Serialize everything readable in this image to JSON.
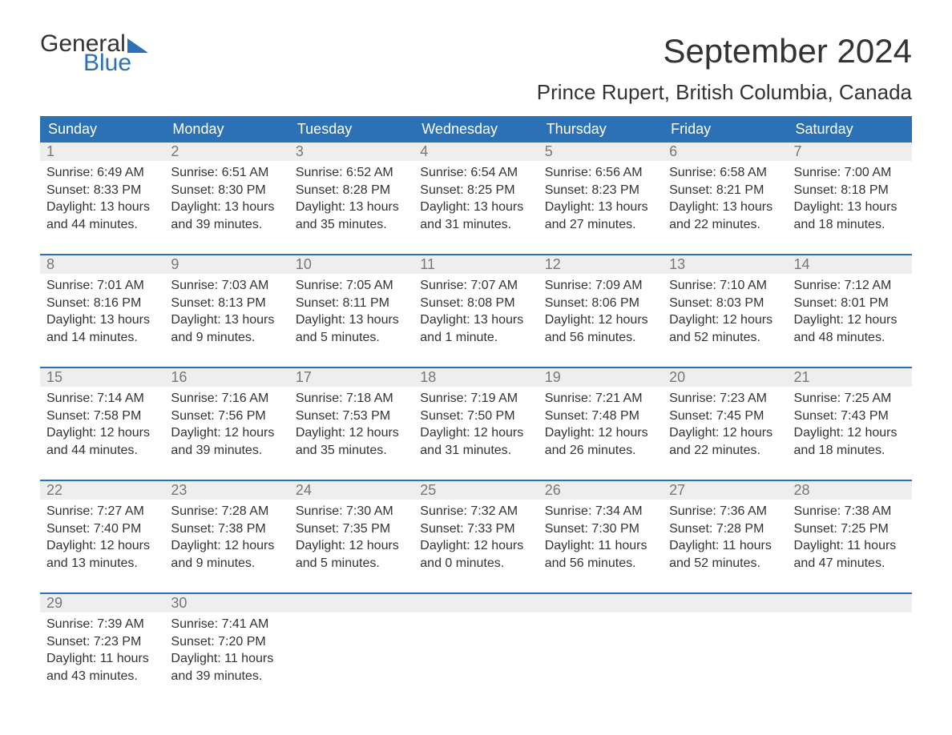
{
  "logo": {
    "line1": "General",
    "line2": "Blue"
  },
  "title": "September 2024",
  "subtitle": "Prince Rupert, British Columbia, Canada",
  "colors": {
    "brand_blue": "#2c71b6",
    "header_text": "#ffffff",
    "daynum_bg": "#eeeeee",
    "daynum_text": "#777777",
    "body_text": "#333333",
    "background": "#ffffff"
  },
  "typography": {
    "title_fontsize": 42,
    "subtitle_fontsize": 26,
    "weekday_fontsize": 18,
    "daynum_fontsize": 18,
    "body_fontsize": 16,
    "logo_fontsize": 30
  },
  "weekdays": [
    "Sunday",
    "Monday",
    "Tuesday",
    "Wednesday",
    "Thursday",
    "Friday",
    "Saturday"
  ],
  "weeks": [
    [
      {
        "num": "1",
        "sunrise": "Sunrise: 6:49 AM",
        "sunset": "Sunset: 8:33 PM",
        "day1": "Daylight: 13 hours",
        "day2": "and 44 minutes."
      },
      {
        "num": "2",
        "sunrise": "Sunrise: 6:51 AM",
        "sunset": "Sunset: 8:30 PM",
        "day1": "Daylight: 13 hours",
        "day2": "and 39 minutes."
      },
      {
        "num": "3",
        "sunrise": "Sunrise: 6:52 AM",
        "sunset": "Sunset: 8:28 PM",
        "day1": "Daylight: 13 hours",
        "day2": "and 35 minutes."
      },
      {
        "num": "4",
        "sunrise": "Sunrise: 6:54 AM",
        "sunset": "Sunset: 8:25 PM",
        "day1": "Daylight: 13 hours",
        "day2": "and 31 minutes."
      },
      {
        "num": "5",
        "sunrise": "Sunrise: 6:56 AM",
        "sunset": "Sunset: 8:23 PM",
        "day1": "Daylight: 13 hours",
        "day2": "and 27 minutes."
      },
      {
        "num": "6",
        "sunrise": "Sunrise: 6:58 AM",
        "sunset": "Sunset: 8:21 PM",
        "day1": "Daylight: 13 hours",
        "day2": "and 22 minutes."
      },
      {
        "num": "7",
        "sunrise": "Sunrise: 7:00 AM",
        "sunset": "Sunset: 8:18 PM",
        "day1": "Daylight: 13 hours",
        "day2": "and 18 minutes."
      }
    ],
    [
      {
        "num": "8",
        "sunrise": "Sunrise: 7:01 AM",
        "sunset": "Sunset: 8:16 PM",
        "day1": "Daylight: 13 hours",
        "day2": "and 14 minutes."
      },
      {
        "num": "9",
        "sunrise": "Sunrise: 7:03 AM",
        "sunset": "Sunset: 8:13 PM",
        "day1": "Daylight: 13 hours",
        "day2": "and 9 minutes."
      },
      {
        "num": "10",
        "sunrise": "Sunrise: 7:05 AM",
        "sunset": "Sunset: 8:11 PM",
        "day1": "Daylight: 13 hours",
        "day2": "and 5 minutes."
      },
      {
        "num": "11",
        "sunrise": "Sunrise: 7:07 AM",
        "sunset": "Sunset: 8:08 PM",
        "day1": "Daylight: 13 hours",
        "day2": "and 1 minute."
      },
      {
        "num": "12",
        "sunrise": "Sunrise: 7:09 AM",
        "sunset": "Sunset: 8:06 PM",
        "day1": "Daylight: 12 hours",
        "day2": "and 56 minutes."
      },
      {
        "num": "13",
        "sunrise": "Sunrise: 7:10 AM",
        "sunset": "Sunset: 8:03 PM",
        "day1": "Daylight: 12 hours",
        "day2": "and 52 minutes."
      },
      {
        "num": "14",
        "sunrise": "Sunrise: 7:12 AM",
        "sunset": "Sunset: 8:01 PM",
        "day1": "Daylight: 12 hours",
        "day2": "and 48 minutes."
      }
    ],
    [
      {
        "num": "15",
        "sunrise": "Sunrise: 7:14 AM",
        "sunset": "Sunset: 7:58 PM",
        "day1": "Daylight: 12 hours",
        "day2": "and 44 minutes."
      },
      {
        "num": "16",
        "sunrise": "Sunrise: 7:16 AM",
        "sunset": "Sunset: 7:56 PM",
        "day1": "Daylight: 12 hours",
        "day2": "and 39 minutes."
      },
      {
        "num": "17",
        "sunrise": "Sunrise: 7:18 AM",
        "sunset": "Sunset: 7:53 PM",
        "day1": "Daylight: 12 hours",
        "day2": "and 35 minutes."
      },
      {
        "num": "18",
        "sunrise": "Sunrise: 7:19 AM",
        "sunset": "Sunset: 7:50 PM",
        "day1": "Daylight: 12 hours",
        "day2": "and 31 minutes."
      },
      {
        "num": "19",
        "sunrise": "Sunrise: 7:21 AM",
        "sunset": "Sunset: 7:48 PM",
        "day1": "Daylight: 12 hours",
        "day2": "and 26 minutes."
      },
      {
        "num": "20",
        "sunrise": "Sunrise: 7:23 AM",
        "sunset": "Sunset: 7:45 PM",
        "day1": "Daylight: 12 hours",
        "day2": "and 22 minutes."
      },
      {
        "num": "21",
        "sunrise": "Sunrise: 7:25 AM",
        "sunset": "Sunset: 7:43 PM",
        "day1": "Daylight: 12 hours",
        "day2": "and 18 minutes."
      }
    ],
    [
      {
        "num": "22",
        "sunrise": "Sunrise: 7:27 AM",
        "sunset": "Sunset: 7:40 PM",
        "day1": "Daylight: 12 hours",
        "day2": "and 13 minutes."
      },
      {
        "num": "23",
        "sunrise": "Sunrise: 7:28 AM",
        "sunset": "Sunset: 7:38 PM",
        "day1": "Daylight: 12 hours",
        "day2": "and 9 minutes."
      },
      {
        "num": "24",
        "sunrise": "Sunrise: 7:30 AM",
        "sunset": "Sunset: 7:35 PM",
        "day1": "Daylight: 12 hours",
        "day2": "and 5 minutes."
      },
      {
        "num": "25",
        "sunrise": "Sunrise: 7:32 AM",
        "sunset": "Sunset: 7:33 PM",
        "day1": "Daylight: 12 hours",
        "day2": "and 0 minutes."
      },
      {
        "num": "26",
        "sunrise": "Sunrise: 7:34 AM",
        "sunset": "Sunset: 7:30 PM",
        "day1": "Daylight: 11 hours",
        "day2": "and 56 minutes."
      },
      {
        "num": "27",
        "sunrise": "Sunrise: 7:36 AM",
        "sunset": "Sunset: 7:28 PM",
        "day1": "Daylight: 11 hours",
        "day2": "and 52 minutes."
      },
      {
        "num": "28",
        "sunrise": "Sunrise: 7:38 AM",
        "sunset": "Sunset: 7:25 PM",
        "day1": "Daylight: 11 hours",
        "day2": "and 47 minutes."
      }
    ],
    [
      {
        "num": "29",
        "sunrise": "Sunrise: 7:39 AM",
        "sunset": "Sunset: 7:23 PM",
        "day1": "Daylight: 11 hours",
        "day2": "and 43 minutes."
      },
      {
        "num": "30",
        "sunrise": "Sunrise: 7:41 AM",
        "sunset": "Sunset: 7:20 PM",
        "day1": "Daylight: 11 hours",
        "day2": "and 39 minutes."
      },
      {
        "num": "",
        "sunrise": "",
        "sunset": "",
        "day1": "",
        "day2": ""
      },
      {
        "num": "",
        "sunrise": "",
        "sunset": "",
        "day1": "",
        "day2": ""
      },
      {
        "num": "",
        "sunrise": "",
        "sunset": "",
        "day1": "",
        "day2": ""
      },
      {
        "num": "",
        "sunrise": "",
        "sunset": "",
        "day1": "",
        "day2": ""
      },
      {
        "num": "",
        "sunrise": "",
        "sunset": "",
        "day1": "",
        "day2": ""
      }
    ]
  ]
}
